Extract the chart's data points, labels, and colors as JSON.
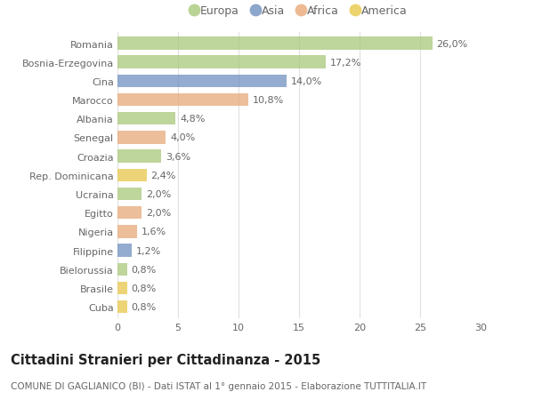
{
  "countries": [
    "Romania",
    "Bosnia-Erzegovina",
    "Cina",
    "Marocco",
    "Albania",
    "Senegal",
    "Croazia",
    "Rep. Dominicana",
    "Ucraina",
    "Egitto",
    "Nigeria",
    "Filippine",
    "Bielorussia",
    "Brasile",
    "Cuba"
  ],
  "values": [
    26.0,
    17.2,
    14.0,
    10.8,
    4.8,
    4.0,
    3.6,
    2.4,
    2.0,
    2.0,
    1.6,
    1.2,
    0.8,
    0.8,
    0.8
  ],
  "labels": [
    "26,0%",
    "17,2%",
    "14,0%",
    "10,8%",
    "4,8%",
    "4,0%",
    "3,6%",
    "2,4%",
    "2,0%",
    "2,0%",
    "1,6%",
    "1,2%",
    "0,8%",
    "0,8%",
    "0,8%"
  ],
  "continents": [
    "Europa",
    "Europa",
    "Asia",
    "Africa",
    "Europa",
    "Africa",
    "Europa",
    "America",
    "Europa",
    "Africa",
    "Africa",
    "Asia",
    "Europa",
    "America",
    "America"
  ],
  "colors": {
    "Europa": "#a8c87a",
    "Asia": "#7090c0",
    "Africa": "#e8a878",
    "America": "#e8c84a"
  },
  "legend_order": [
    "Europa",
    "Asia",
    "Africa",
    "America"
  ],
  "title": "Cittadini Stranieri per Cittadinanza - 2015",
  "subtitle": "COMUNE DI GAGLIANICO (BI) - Dati ISTAT al 1° gennaio 2015 - Elaborazione TUTTITALIA.IT",
  "xlim": [
    0,
    30
  ],
  "xticks": [
    0,
    5,
    10,
    15,
    20,
    25,
    30
  ],
  "background_color": "#ffffff",
  "grid_color": "#e0e0e0",
  "bar_height": 0.68,
  "label_fontsize": 8,
  "tick_fontsize": 8,
  "title_fontsize": 10.5,
  "subtitle_fontsize": 7.5,
  "legend_fontsize": 9
}
